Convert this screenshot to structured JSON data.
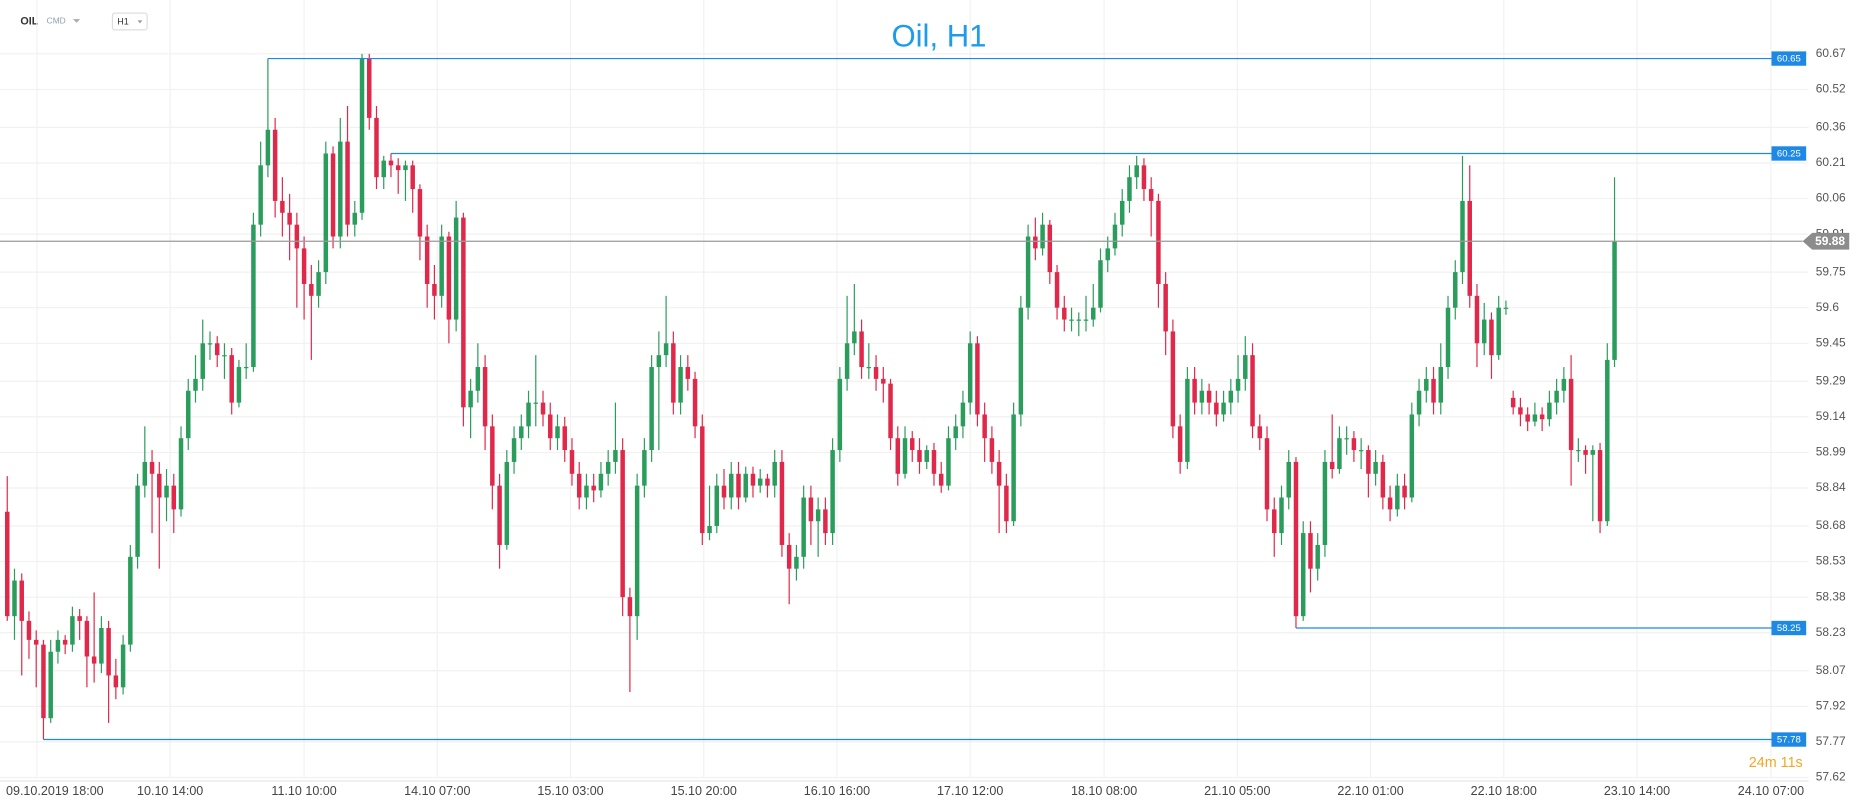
{
  "chart_data": {
    "type": "candlestick",
    "title": "Oil, H1",
    "symbol": "OIL",
    "market": "CMD",
    "timeframe": "H1",
    "timer": "24m 11s",
    "up_color": "#2a9d5c",
    "down_color": "#e0294a",
    "level_color": "#1e88e5",
    "grid": true,
    "current_price": 59.88,
    "levels": [
      60.65,
      60.25,
      58.25,
      57.78
    ],
    "ylim": [
      57.62,
      60.67
    ],
    "yticks": [
      60.67,
      60.52,
      60.36,
      60.21,
      60.06,
      59.91,
      59.75,
      59.6,
      59.45,
      59.29,
      59.14,
      58.99,
      58.84,
      58.68,
      58.53,
      58.38,
      58.23,
      58.07,
      57.92,
      57.77,
      57.62
    ],
    "xlim": [
      -1,
      248.8
    ],
    "xticks": [
      {
        "value": 4.1,
        "label": "09.10.2019 18:00"
      },
      {
        "value": 22.5,
        "label": "10.10 14:00"
      },
      {
        "value": 41.0,
        "label": "11.10 10:00"
      },
      {
        "value": 59.4,
        "label": "14.10 07:00"
      },
      {
        "value": 77.8,
        "label": "15.10 03:00"
      },
      {
        "value": 96.2,
        "label": "15.10 20:00"
      },
      {
        "value": 114.6,
        "label": "16.10 16:00"
      },
      {
        "value": 133.0,
        "label": "17.10 12:00"
      },
      {
        "value": 151.5,
        "label": "18.10 08:00"
      },
      {
        "value": 169.9,
        "label": "21.10 05:00"
      },
      {
        "value": 188.3,
        "label": "22.10 01:00"
      },
      {
        "value": 206.7,
        "label": "22.10 18:00"
      },
      {
        "value": 225.1,
        "label": "23.10 14:00"
      },
      {
        "value": 243.6,
        "label": "24.10 07:00"
      }
    ],
    "ohlc": [
      [
        58.74,
        58.89,
        58.28,
        58.3
      ],
      [
        58.3,
        58.5,
        58.2,
        58.45
      ],
      [
        58.45,
        58.48,
        58.05,
        58.28
      ],
      [
        58.28,
        58.32,
        58.12,
        58.2
      ],
      [
        58.2,
        58.24,
        58.0,
        58.18
      ],
      [
        58.18,
        58.2,
        57.78,
        57.87
      ],
      [
        57.87,
        58.2,
        57.85,
        58.15
      ],
      [
        58.15,
        58.24,
        58.1,
        58.2
      ],
      [
        58.2,
        58.22,
        58.14,
        58.18
      ],
      [
        58.18,
        58.34,
        58.15,
        58.3
      ],
      [
        58.3,
        58.33,
        58.2,
        58.28
      ],
      [
        58.28,
        58.3,
        58.0,
        58.13
      ],
      [
        58.13,
        58.4,
        58.02,
        58.1
      ],
      [
        58.1,
        58.3,
        58.06,
        58.25
      ],
      [
        58.25,
        58.28,
        57.85,
        58.05
      ],
      [
        58.05,
        58.12,
        57.95,
        58.0
      ],
      [
        58.0,
        58.22,
        57.97,
        58.18
      ],
      [
        58.18,
        58.6,
        58.15,
        58.55
      ],
      [
        58.55,
        58.9,
        58.5,
        58.85
      ],
      [
        58.85,
        59.1,
        58.8,
        58.95
      ],
      [
        58.95,
        59.0,
        58.65,
        58.9
      ],
      [
        58.9,
        58.95,
        58.5,
        58.8
      ],
      [
        58.8,
        58.92,
        58.7,
        58.85
      ],
      [
        58.85,
        58.9,
        58.65,
        58.75
      ],
      [
        58.75,
        59.1,
        58.72,
        59.05
      ],
      [
        59.05,
        59.3,
        59.0,
        59.25
      ],
      [
        59.25,
        59.4,
        59.2,
        59.3
      ],
      [
        59.3,
        59.55,
        59.25,
        59.45
      ],
      [
        59.45,
        59.5,
        59.38,
        59.45
      ],
      [
        59.45,
        59.48,
        59.35,
        59.4
      ],
      [
        59.4,
        59.45,
        59.3,
        59.4
      ],
      [
        59.4,
        59.43,
        59.15,
        59.2
      ],
      [
        59.2,
        59.38,
        59.18,
        59.35
      ],
      [
        59.35,
        59.45,
        59.3,
        59.35
      ],
      [
        59.35,
        60.0,
        59.33,
        59.95
      ],
      [
        59.95,
        60.3,
        59.9,
        60.2
      ],
      [
        60.2,
        60.65,
        60.15,
        60.35
      ],
      [
        60.35,
        60.4,
        59.98,
        60.05
      ],
      [
        60.05,
        60.15,
        59.9,
        60.0
      ],
      [
        60.0,
        60.08,
        59.8,
        59.95
      ],
      [
        59.95,
        60.0,
        59.6,
        59.85
      ],
      [
        59.85,
        59.9,
        59.55,
        59.7
      ],
      [
        59.7,
        59.78,
        59.38,
        59.65
      ],
      [
        59.65,
        59.8,
        59.6,
        59.75
      ],
      [
        59.75,
        60.3,
        59.7,
        60.25
      ],
      [
        60.25,
        60.28,
        59.85,
        59.9
      ],
      [
        59.9,
        60.4,
        59.85,
        60.3
      ],
      [
        60.3,
        60.45,
        59.9,
        59.95
      ],
      [
        59.95,
        60.05,
        59.9,
        60.0
      ],
      [
        60.0,
        60.67,
        59.97,
        60.65
      ],
      [
        60.65,
        60.67,
        60.35,
        60.4
      ],
      [
        60.4,
        60.45,
        60.1,
        60.15
      ],
      [
        60.15,
        60.24,
        60.1,
        60.22
      ],
      [
        60.22,
        60.25,
        60.15,
        60.2
      ],
      [
        60.2,
        60.23,
        60.08,
        60.18
      ],
      [
        60.18,
        60.22,
        60.05,
        60.2
      ],
      [
        60.2,
        60.22,
        60.0,
        60.1
      ],
      [
        60.1,
        60.12,
        59.8,
        59.9
      ],
      [
        59.9,
        59.95,
        59.6,
        59.7
      ],
      [
        59.7,
        59.78,
        59.55,
        59.65
      ],
      [
        59.65,
        59.95,
        59.6,
        59.9
      ],
      [
        59.9,
        59.92,
        59.45,
        59.55
      ],
      [
        59.55,
        60.05,
        59.5,
        59.98
      ],
      [
        59.98,
        60.0,
        59.1,
        59.18
      ],
      [
        59.18,
        59.3,
        59.05,
        59.25
      ],
      [
        59.25,
        59.45,
        59.2,
        59.35
      ],
      [
        59.35,
        59.4,
        59.0,
        59.1
      ],
      [
        59.1,
        59.15,
        58.75,
        58.85
      ],
      [
        58.85,
        58.9,
        58.5,
        58.6
      ],
      [
        58.6,
        59.0,
        58.58,
        58.95
      ],
      [
        58.95,
        59.1,
        58.9,
        59.05
      ],
      [
        59.05,
        59.15,
        59.0,
        59.1
      ],
      [
        59.1,
        59.25,
        59.05,
        59.2
      ],
      [
        59.2,
        59.4,
        59.1,
        59.2
      ],
      [
        59.2,
        59.25,
        59.1,
        59.15
      ],
      [
        59.15,
        59.2,
        59.0,
        59.05
      ],
      [
        59.05,
        59.15,
        59.0,
        59.1
      ],
      [
        59.1,
        59.14,
        58.95,
        59.0
      ],
      [
        59.0,
        59.05,
        58.85,
        58.9
      ],
      [
        58.9,
        58.95,
        58.75,
        58.8
      ],
      [
        58.8,
        58.9,
        58.75,
        58.85
      ],
      [
        58.85,
        58.9,
        58.78,
        58.83
      ],
      [
        58.83,
        58.95,
        58.8,
        58.9
      ],
      [
        58.9,
        59.0,
        58.85,
        58.95
      ],
      [
        58.95,
        59.2,
        58.9,
        59.0
      ],
      [
        59.0,
        59.05,
        58.3,
        58.38
      ],
      [
        58.38,
        58.42,
        57.98,
        58.3
      ],
      [
        58.3,
        58.9,
        58.2,
        58.85
      ],
      [
        58.85,
        59.05,
        58.8,
        59.0
      ],
      [
        59.0,
        59.4,
        58.95,
        59.35
      ],
      [
        59.35,
        59.5,
        59.0,
        59.4
      ],
      [
        59.4,
        59.65,
        59.35,
        59.45
      ],
      [
        59.45,
        59.5,
        59.15,
        59.2
      ],
      [
        59.2,
        59.4,
        59.15,
        59.35
      ],
      [
        59.35,
        59.4,
        59.25,
        59.3
      ],
      [
        59.3,
        59.33,
        59.05,
        59.1
      ],
      [
        59.1,
        59.15,
        58.6,
        58.65
      ],
      [
        58.65,
        58.85,
        58.62,
        58.68
      ],
      [
        58.68,
        58.9,
        58.65,
        58.85
      ],
      [
        58.85,
        58.92,
        58.75,
        58.8
      ],
      [
        58.8,
        58.95,
        58.75,
        58.9
      ],
      [
        58.9,
        58.95,
        58.75,
        58.8
      ],
      [
        58.8,
        58.93,
        58.78,
        58.9
      ],
      [
        58.9,
        58.93,
        58.8,
        58.85
      ],
      [
        58.85,
        58.92,
        58.82,
        58.88
      ],
      [
        58.88,
        58.9,
        58.8,
        58.85
      ],
      [
        58.85,
        59.0,
        58.8,
        58.95
      ],
      [
        58.95,
        59.0,
        58.55,
        58.6
      ],
      [
        58.6,
        58.65,
        58.35,
        58.5
      ],
      [
        58.5,
        58.6,
        58.45,
        58.55
      ],
      [
        58.55,
        58.85,
        58.5,
        58.8
      ],
      [
        58.8,
        58.85,
        58.6,
        58.7
      ],
      [
        58.7,
        58.8,
        58.55,
        58.75
      ],
      [
        58.75,
        58.8,
        58.6,
        58.65
      ],
      [
        58.65,
        59.05,
        58.6,
        59.0
      ],
      [
        59.0,
        59.35,
        58.95,
        59.3
      ],
      [
        59.3,
        59.65,
        59.25,
        59.45
      ],
      [
        59.45,
        59.7,
        59.4,
        59.5
      ],
      [
        59.5,
        59.55,
        59.3,
        59.35
      ],
      [
        59.35,
        59.45,
        59.3,
        59.35
      ],
      [
        59.35,
        59.4,
        59.25,
        59.3
      ],
      [
        59.3,
        59.35,
        59.2,
        59.28
      ],
      [
        59.28,
        59.3,
        59.0,
        59.05
      ],
      [
        59.05,
        59.1,
        58.85,
        58.9
      ],
      [
        58.9,
        59.1,
        58.88,
        59.05
      ],
      [
        59.05,
        59.08,
        58.95,
        59.0
      ],
      [
        59.0,
        59.05,
        58.9,
        58.95
      ],
      [
        58.95,
        59.02,
        58.92,
        59.0
      ],
      [
        59.0,
        59.03,
        58.85,
        58.9
      ],
      [
        58.9,
        58.95,
        58.82,
        58.85
      ],
      [
        58.85,
        59.1,
        58.83,
        59.05
      ],
      [
        59.05,
        59.15,
        59.0,
        59.1
      ],
      [
        59.1,
        59.25,
        59.05,
        59.2
      ],
      [
        59.2,
        59.5,
        59.15,
        59.45
      ],
      [
        59.45,
        59.48,
        59.1,
        59.15
      ],
      [
        59.15,
        59.2,
        58.95,
        59.05
      ],
      [
        59.05,
        59.1,
        58.9,
        58.95
      ],
      [
        58.95,
        59.0,
        58.65,
        58.85
      ],
      [
        58.85,
        58.9,
        58.65,
        58.7
      ],
      [
        58.7,
        59.2,
        58.68,
        59.15
      ],
      [
        59.15,
        59.65,
        59.1,
        59.6
      ],
      [
        59.6,
        59.95,
        59.55,
        59.9
      ],
      [
        59.9,
        59.98,
        59.8,
        59.85
      ],
      [
        59.85,
        60.0,
        59.82,
        59.95
      ],
      [
        59.95,
        59.97,
        59.7,
        59.75
      ],
      [
        59.75,
        59.78,
        59.55,
        59.6
      ],
      [
        59.6,
        59.65,
        59.5,
        59.55
      ],
      [
        59.55,
        59.6,
        59.5,
        59.55
      ],
      [
        59.55,
        59.58,
        59.48,
        59.55
      ],
      [
        59.55,
        59.65,
        59.5,
        59.55
      ],
      [
        59.55,
        59.7,
        59.52,
        59.6
      ],
      [
        59.6,
        59.85,
        59.58,
        59.8
      ],
      [
        59.8,
        59.9,
        59.75,
        59.85
      ],
      [
        59.85,
        60.0,
        59.82,
        59.95
      ],
      [
        59.95,
        60.1,
        59.9,
        60.05
      ],
      [
        60.05,
        60.2,
        60.0,
        60.15
      ],
      [
        60.15,
        60.24,
        60.1,
        60.2
      ],
      [
        60.2,
        60.23,
        60.05,
        60.1
      ],
      [
        60.1,
        60.15,
        59.9,
        60.05
      ],
      [
        60.05,
        60.08,
        59.6,
        59.7
      ],
      [
        59.7,
        59.75,
        59.4,
        59.5
      ],
      [
        59.5,
        59.55,
        59.05,
        59.1
      ],
      [
        59.1,
        59.15,
        58.9,
        58.95
      ],
      [
        58.95,
        59.35,
        58.92,
        59.3
      ],
      [
        59.3,
        59.35,
        59.15,
        59.2
      ],
      [
        59.2,
        59.3,
        59.15,
        59.25
      ],
      [
        59.25,
        59.28,
        59.15,
        59.2
      ],
      [
        59.2,
        59.25,
        59.1,
        59.15
      ],
      [
        59.15,
        59.25,
        59.12,
        59.2
      ],
      [
        59.2,
        59.3,
        59.15,
        59.25
      ],
      [
        59.25,
        59.4,
        59.2,
        59.3
      ],
      [
        59.3,
        59.48,
        59.25,
        59.4
      ],
      [
        59.4,
        59.45,
        59.05,
        59.1
      ],
      [
        59.1,
        59.15,
        59.0,
        59.05
      ],
      [
        59.05,
        59.1,
        58.7,
        58.75
      ],
      [
        58.75,
        58.8,
        58.55,
        58.65
      ],
      [
        58.65,
        58.85,
        58.6,
        58.8
      ],
      [
        58.8,
        59.0,
        58.75,
        58.95
      ],
      [
        58.95,
        58.97,
        58.25,
        58.3
      ],
      [
        58.3,
        58.7,
        58.28,
        58.65
      ],
      [
        58.65,
        58.7,
        58.4,
        58.5
      ],
      [
        58.5,
        58.65,
        58.45,
        58.6
      ],
      [
        58.6,
        59.0,
        58.55,
        58.95
      ],
      [
        58.95,
        59.15,
        58.88,
        58.92
      ],
      [
        58.92,
        59.1,
        58.9,
        59.05
      ],
      [
        59.05,
        59.1,
        58.98,
        59.05
      ],
      [
        59.05,
        59.08,
        58.95,
        59.0
      ],
      [
        59.0,
        59.05,
        58.92,
        59.0
      ],
      [
        59.0,
        59.02,
        58.8,
        58.9
      ],
      [
        58.9,
        59.0,
        58.85,
        58.95
      ],
      [
        58.95,
        58.98,
        58.75,
        58.8
      ],
      [
        58.8,
        58.85,
        58.7,
        58.75
      ],
      [
        58.75,
        58.9,
        58.72,
        58.85
      ],
      [
        58.85,
        58.9,
        58.75,
        58.8
      ],
      [
        58.8,
        59.2,
        58.78,
        59.15
      ],
      [
        59.15,
        59.3,
        59.1,
        59.25
      ],
      [
        59.25,
        59.35,
        59.2,
        59.3
      ],
      [
        59.3,
        59.35,
        59.15,
        59.2
      ],
      [
        59.2,
        59.45,
        59.15,
        59.35
      ],
      [
        59.35,
        59.65,
        59.3,
        59.6
      ],
      [
        59.6,
        59.8,
        59.55,
        59.75
      ],
      [
        59.75,
        60.24,
        59.7,
        60.05
      ],
      [
        60.05,
        60.2,
        59.6,
        59.65
      ],
      [
        59.65,
        59.7,
        59.35,
        59.45
      ],
      [
        59.45,
        59.62,
        59.4,
        59.55
      ],
      [
        59.55,
        59.58,
        59.3,
        59.4
      ],
      [
        59.4,
        59.65,
        59.38,
        59.6
      ],
      [
        59.6,
        59.63,
        59.57,
        59.6
      ],
      [
        59.22,
        59.25,
        59.15,
        59.18
      ],
      [
        59.18,
        59.22,
        59.1,
        59.15
      ],
      [
        59.15,
        59.18,
        59.08,
        59.12
      ],
      [
        59.12,
        59.2,
        59.1,
        59.15
      ],
      [
        59.15,
        59.18,
        59.08,
        59.13
      ],
      [
        59.13,
        59.25,
        59.1,
        59.2
      ],
      [
        59.2,
        59.3,
        59.15,
        59.25
      ],
      [
        59.25,
        59.35,
        59.2,
        59.3
      ],
      [
        59.3,
        59.4,
        58.85,
        59.0
      ],
      [
        59.0,
        59.05,
        58.95,
        59.0
      ],
      [
        59.0,
        59.02,
        58.9,
        58.98
      ],
      [
        58.98,
        59.02,
        58.7,
        59.0
      ],
      [
        59.0,
        59.03,
        58.65,
        58.7
      ],
      [
        58.7,
        59.45,
        58.68,
        59.38
      ],
      [
        59.38,
        60.15,
        59.35,
        59.88
      ]
    ]
  }
}
